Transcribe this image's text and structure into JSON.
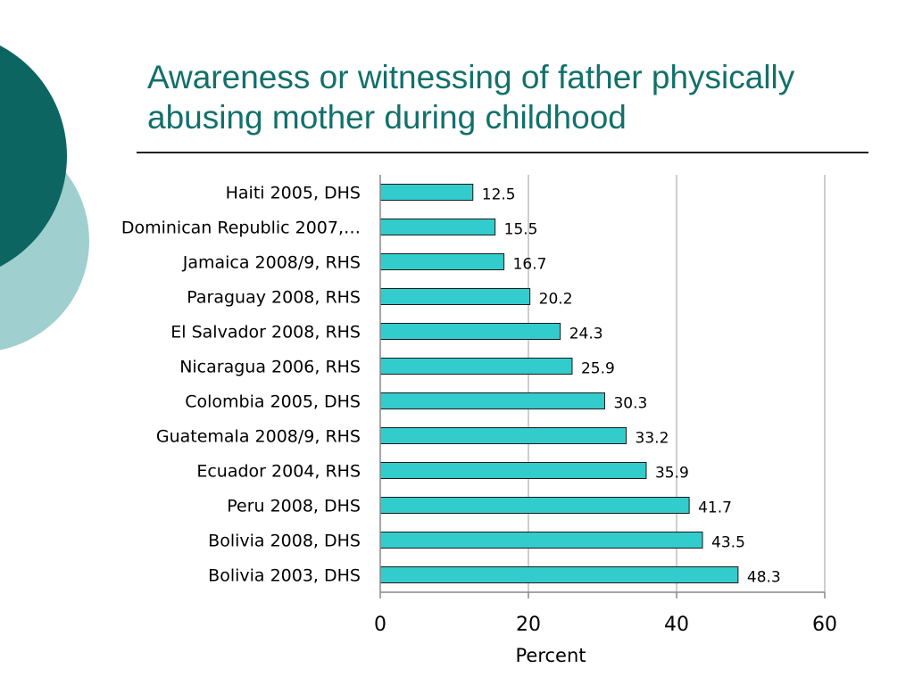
{
  "slide": {
    "title_lines": [
      "Awareness or witnessing of father physically",
      "abusing mother during childhood"
    ],
    "accent_color": "#12706a",
    "accent_light_color": "#9fcfcf"
  },
  "chart_data": {
    "type": "bar",
    "orientation": "horizontal",
    "title": "",
    "categories": [
      "Haiti 2005, DHS",
      "Dominican Republic 2007,…",
      "Jamaica 2008/9, RHS",
      "Paraguay 2008, RHS",
      "El Salvador 2008, RHS",
      "Nicaragua 2006, RHS",
      "Colombia 2005, DHS",
      "Guatemala 2008/9, RHS",
      "Ecuador 2004, RHS",
      "Peru 2008, DHS",
      "Bolivia 2008, DHS",
      "Bolivia 2003, DHS"
    ],
    "values": [
      12.5,
      15.5,
      16.7,
      20.2,
      24.3,
      25.9,
      30.3,
      33.2,
      35.9,
      41.7,
      43.5,
      48.3
    ],
    "data_labels": [
      "12.5",
      "15.5",
      "16.7",
      "20.2",
      "24.3",
      "25.9",
      "30.3",
      "33.2",
      "35.9",
      "41.7",
      "43.5",
      "48.3"
    ],
    "xlabel": "Percent",
    "xlim": [
      0,
      60
    ],
    "xticks": [
      0,
      20,
      40,
      60
    ],
    "xtick_labels": [
      "0",
      "20",
      "40",
      "60"
    ],
    "grid": true,
    "bar_color": "#33cccc"
  }
}
